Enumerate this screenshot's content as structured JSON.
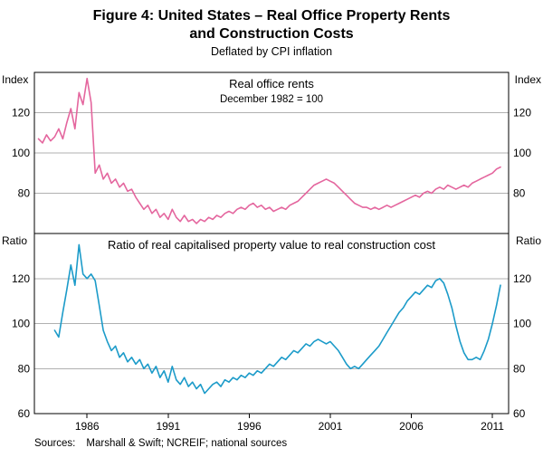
{
  "header": {
    "title_line1": "Figure 4: United States – Real Office Property Rents",
    "title_line2": "and Construction Costs",
    "subtitle": "Deflated by CPI inflation"
  },
  "footer": {
    "sources_label": "Sources:",
    "sources_text": "Marshall & Swift; NCREIF; national sources"
  },
  "chart_data": {
    "type": "line",
    "title": "Figure 4: United States – Real Office Property Rents and Construction Costs",
    "subtitle": "Deflated by CPI inflation",
    "x_range": [
      1982.75,
      2012
    ],
    "x_ticks": [
      1986,
      1991,
      1996,
      2001,
      2006,
      2011
    ],
    "grid": true,
    "legend_position": "none",
    "frame_color": "#000000",
    "grid_color": "#b0b0b0",
    "panels": [
      {
        "title": "Real office rents",
        "subtitle": "December 1982 = 100",
        "unit_label": "Index",
        "ylim": [
          60,
          140
        ],
        "y_ticks": [
          80,
          100,
          120
        ],
        "series": [
          {
            "name": "Real office rents",
            "color": "#E4669E",
            "x_start": 1983.0,
            "x_step": 0.25,
            "values": [
              107,
              105,
              109,
              106,
              108,
              112,
              107,
              115,
              122,
              112,
              130,
              124,
              137,
              125,
              90,
              94,
              87,
              90,
              85,
              87,
              83,
              85,
              81,
              82,
              78,
              75,
              72,
              74,
              70,
              72,
              68,
              70,
              67,
              72,
              68,
              66,
              69,
              66,
              67,
              65,
              67,
              66,
              68,
              67,
              69,
              68,
              70,
              71,
              70,
              72,
              73,
              72,
              74,
              75,
              73,
              74,
              72,
              73,
              71,
              72,
              73,
              72,
              74,
              75,
              76,
              78,
              80,
              82,
              84,
              85,
              86,
              87,
              86,
              85,
              83,
              81,
              79,
              77,
              75,
              74,
              73,
              73,
              72,
              73,
              72,
              73,
              74,
              73,
              74,
              75,
              76,
              77,
              78,
              79,
              78,
              80,
              81,
              80,
              82,
              83,
              82,
              84,
              83,
              82,
              83,
              84,
              83,
              85,
              86,
              87,
              88,
              89,
              90,
              92,
              93
            ]
          }
        ]
      },
      {
        "title": "Ratio of real capitalised property value to real construction cost",
        "subtitle": "",
        "unit_label": "Ratio",
        "ylim": [
          60,
          140
        ],
        "y_ticks": [
          60,
          80,
          100,
          120
        ],
        "series": [
          {
            "name": "Ratio of real capitalised property value to real construction cost",
            "color": "#1C9BC9",
            "x_start": 1984.0,
            "x_step": 0.25,
            "values": [
              97,
              94,
              105,
              115,
              126,
              117,
              135,
              122,
              120,
              122,
              119,
              108,
              97,
              92,
              88,
              90,
              85,
              87,
              83,
              85,
              82,
              84,
              80,
              82,
              78,
              81,
              76,
              79,
              74,
              81,
              75,
              73,
              76,
              72,
              74,
              71,
              73,
              69,
              71,
              73,
              74,
              72,
              75,
              74,
              76,
              75,
              77,
              76,
              78,
              77,
              79,
              78,
              80,
              82,
              81,
              83,
              85,
              84,
              86,
              88,
              87,
              89,
              91,
              90,
              92,
              93,
              92,
              91,
              92,
              90,
              88,
              85,
              82,
              80,
              81,
              80,
              82,
              84,
              86,
              88,
              90,
              93,
              96,
              99,
              102,
              105,
              107,
              110,
              112,
              114,
              113,
              115,
              117,
              116,
              119,
              120,
              118,
              113,
              107,
              99,
              92,
              87,
              84,
              84,
              85,
              84,
              88,
              93,
              100,
              108,
              117
            ]
          }
        ]
      }
    ]
  }
}
